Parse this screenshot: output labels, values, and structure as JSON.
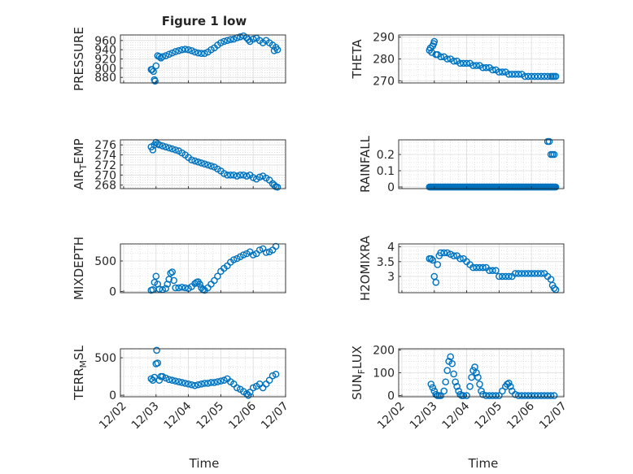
{
  "figure": {
    "title": "Figure 1 low",
    "xlabel": "Time"
  },
  "colors": {
    "marker": "#0072BD",
    "axes": "#262626",
    "grid": "#d0d0d0"
  },
  "x_ticks": [
    "12/02",
    "12/03",
    "12/04",
    "12/05",
    "12/06",
    "12/07"
  ],
  "chart_data": [
    {
      "type": "scatter",
      "ylabel": "PRESSURE",
      "xlim": [
        -0.1,
        5.0
      ],
      "ylim": [
        868,
        972
      ],
      "yticks": [
        "960",
        "940",
        "920",
        "900",
        "880"
      ],
      "ytick_values": [
        960,
        940,
        920,
        900,
        880
      ],
      "grid": true,
      "x": [
        0.85,
        0.88,
        0.92,
        0.95,
        0.97,
        1.0,
        1.05,
        1.1,
        1.15,
        1.2,
        1.3,
        1.4,
        1.5,
        1.6,
        1.7,
        1.8,
        1.9,
        2.0,
        2.1,
        2.2,
        2.3,
        2.4,
        2.5,
        2.6,
        2.7,
        2.8,
        2.9,
        3.0,
        3.1,
        3.2,
        3.3,
        3.4,
        3.5,
        3.6,
        3.7,
        3.8,
        3.85,
        3.9,
        4.0,
        4.1,
        4.2,
        4.3,
        4.4,
        4.5,
        4.6,
        4.65,
        4.7,
        4.75
      ],
      "y": [
        897,
        897,
        893,
        875,
        872,
        905,
        927,
        925,
        922,
        925,
        927,
        930,
        933,
        936,
        938,
        940,
        941,
        940,
        938,
        935,
        933,
        932,
        932,
        935,
        940,
        944,
        950,
        955,
        958,
        960,
        962,
        963,
        966,
        968,
        970,
        966,
        962,
        958,
        963,
        965,
        960,
        955,
        960,
        955,
        950,
        938,
        945,
        940
      ]
    },
    {
      "type": "scatter",
      "ylabel": "THETA",
      "xlim": [
        -0.1,
        5.0
      ],
      "ylim": [
        269,
        291
      ],
      "yticks": [
        "290",
        "280",
        "270"
      ],
      "ytick_values": [
        290,
        280,
        270
      ],
      "grid": true,
      "x": [
        0.85,
        0.88,
        0.92,
        0.95,
        0.98,
        1.0,
        1.05,
        1.1,
        1.2,
        1.3,
        1.4,
        1.5,
        1.6,
        1.7,
        1.8,
        1.9,
        2.0,
        2.1,
        2.2,
        2.3,
        2.4,
        2.5,
        2.6,
        2.7,
        2.8,
        2.9,
        3.0,
        3.1,
        3.2,
        3.3,
        3.4,
        3.5,
        3.6,
        3.7,
        3.8,
        3.9,
        4.0,
        4.1,
        4.2,
        4.3,
        4.4,
        4.5,
        4.6,
        4.65,
        4.7,
        4.75
      ],
      "y": [
        284,
        285,
        283,
        286,
        287,
        288,
        282,
        282,
        281,
        281,
        280,
        280,
        279,
        279,
        278,
        278,
        278,
        278,
        277,
        277,
        277,
        276,
        276,
        276,
        275,
        275,
        274,
        274,
        274,
        273,
        273,
        273,
        273,
        273,
        272,
        272,
        272,
        272,
        272,
        272,
        272,
        272,
        272,
        272,
        272,
        272
      ]
    },
    {
      "type": "scatter",
      "ylabel": "AIR_TEMP",
      "xlim": [
        -0.1,
        5.0
      ],
      "ylim": [
        267.3,
        277
      ],
      "yticks": [
        "276",
        "274",
        "272",
        "270",
        "268"
      ],
      "ytick_values": [
        276,
        274,
        272,
        270,
        268
      ],
      "grid": true,
      "x": [
        0.85,
        0.9,
        0.95,
        1.0,
        1.05,
        1.1,
        1.2,
        1.3,
        1.4,
        1.5,
        1.6,
        1.7,
        1.8,
        1.9,
        2.0,
        2.1,
        2.2,
        2.3,
        2.4,
        2.5,
        2.6,
        2.7,
        2.8,
        2.9,
        3.0,
        3.1,
        3.2,
        3.3,
        3.4,
        3.5,
        3.6,
        3.7,
        3.8,
        3.9,
        4.0,
        4.1,
        4.2,
        4.3,
        4.4,
        4.5,
        4.6,
        4.65,
        4.7,
        4.75
      ],
      "y": [
        275.6,
        275.0,
        276.0,
        276.5,
        276.2,
        276.0,
        275.8,
        275.6,
        275.4,
        275.2,
        275.0,
        274.8,
        274.4,
        274.0,
        273.5,
        273.0,
        272.8,
        272.6,
        272.4,
        272.2,
        272.0,
        271.8,
        271.6,
        271.2,
        270.8,
        270.3,
        270.0,
        270.0,
        270.0,
        269.8,
        270.0,
        270.0,
        269.8,
        270.0,
        269.5,
        269.2,
        269.6,
        269.8,
        269.4,
        269.0,
        268.3,
        268.0,
        267.7,
        267.6
      ]
    },
    {
      "type": "scatter",
      "ylabel": "RAINFALL",
      "xlim": [
        -0.1,
        5.0
      ],
      "ylim": [
        -0.01,
        0.29
      ],
      "yticks": [
        "0.2",
        "0.1",
        "0"
      ],
      "ytick_values": [
        0.2,
        0.1,
        0
      ],
      "grid": true,
      "x_range_zero": [
        0.85,
        4.75
      ],
      "x": [
        4.5,
        4.55,
        4.6,
        4.65,
        4.7
      ],
      "y": [
        0.28,
        0.28,
        0.2,
        0.2,
        0.2
      ]
    },
    {
      "type": "scatter",
      "ylabel": "MIXDEPTH",
      "xlim": [
        -0.1,
        5.0
      ],
      "ylim": [
        -20,
        780
      ],
      "yticks": [
        "500",
        "0"
      ],
      "ytick_values": [
        500,
        0
      ],
      "grid": true,
      "x": [
        0.85,
        0.9,
        0.95,
        1.0,
        1.05,
        1.1,
        1.2,
        1.3,
        1.35,
        1.4,
        1.45,
        1.5,
        1.55,
        1.6,
        1.7,
        1.8,
        1.9,
        2.0,
        2.1,
        2.2,
        2.25,
        2.3,
        2.35,
        2.4,
        2.45,
        2.5,
        2.6,
        2.7,
        2.8,
        2.9,
        3.0,
        3.1,
        3.2,
        3.3,
        3.4,
        3.5,
        3.6,
        3.7,
        3.8,
        3.9,
        4.0,
        4.1,
        4.2,
        4.3,
        4.4,
        4.5,
        4.6,
        4.7
      ],
      "y": [
        20,
        30,
        150,
        250,
        120,
        40,
        30,
        50,
        120,
        200,
        300,
        320,
        180,
        60,
        60,
        70,
        60,
        50,
        80,
        130,
        150,
        160,
        120,
        60,
        30,
        20,
        60,
        120,
        180,
        250,
        330,
        380,
        420,
        480,
        520,
        540,
        570,
        600,
        620,
        650,
        600,
        620,
        680,
        700,
        640,
        650,
        680,
        740
      ]
    },
    {
      "type": "scatter",
      "ylabel": "H2OMIXRA",
      "xlim": [
        -0.1,
        5.0
      ],
      "ylim": [
        2.45,
        4.1
      ],
      "yticks": [
        "4",
        "3.5",
        "3"
      ],
      "ytick_values": [
        4,
        3.5,
        3
      ],
      "grid": true,
      "x": [
        0.85,
        0.9,
        0.95,
        1.0,
        1.05,
        1.1,
        1.15,
        1.2,
        1.3,
        1.4,
        1.5,
        1.6,
        1.7,
        1.8,
        1.9,
        2.0,
        2.1,
        2.2,
        2.3,
        2.4,
        2.5,
        2.6,
        2.7,
        2.8,
        2.9,
        3.0,
        3.1,
        3.2,
        3.3,
        3.4,
        3.5,
        3.6,
        3.7,
        3.8,
        3.9,
        4.0,
        4.1,
        4.2,
        4.3,
        4.4,
        4.5,
        4.6,
        4.65,
        4.7,
        4.75
      ],
      "y": [
        3.6,
        3.6,
        3.55,
        3.0,
        2.8,
        3.4,
        3.7,
        3.8,
        3.8,
        3.8,
        3.75,
        3.7,
        3.7,
        3.6,
        3.6,
        3.5,
        3.4,
        3.3,
        3.3,
        3.3,
        3.3,
        3.3,
        3.2,
        3.2,
        3.2,
        3.0,
        3.0,
        3.0,
        3.0,
        3.0,
        3.1,
        3.1,
        3.1,
        3.1,
        3.1,
        3.1,
        3.1,
        3.1,
        3.1,
        3.1,
        3.0,
        2.9,
        2.7,
        2.6,
        2.55
      ]
    },
    {
      "type": "scatter",
      "ylabel": "TERR_MSL",
      "xlim": [
        -0.1,
        5.0
      ],
      "ylim": [
        -20,
        620
      ],
      "yticks": [
        "500",
        "0"
      ],
      "ytick_values": [
        500,
        0
      ],
      "grid": true,
      "x": [
        0.85,
        0.9,
        0.95,
        1.0,
        1.02,
        1.05,
        1.1,
        1.15,
        1.2,
        1.3,
        1.4,
        1.5,
        1.6,
        1.7,
        1.8,
        1.9,
        2.0,
        2.1,
        2.2,
        2.3,
        2.4,
        2.5,
        2.6,
        2.7,
        2.8,
        2.9,
        3.0,
        3.1,
        3.2,
        3.3,
        3.4,
        3.5,
        3.6,
        3.7,
        3.8,
        3.85,
        3.9,
        4.0,
        4.1,
        4.2,
        4.3,
        4.4,
        4.5,
        4.6,
        4.7
      ],
      "y": [
        220,
        200,
        240,
        420,
        600,
        430,
        200,
        250,
        250,
        230,
        210,
        200,
        190,
        180,
        170,
        160,
        150,
        140,
        130,
        140,
        150,
        160,
        160,
        170,
        170,
        180,
        190,
        200,
        220,
        180,
        150,
        100,
        80,
        50,
        20,
        0,
        40,
        100,
        120,
        150,
        100,
        150,
        200,
        260,
        280
      ]
    },
    {
      "type": "scatter",
      "ylabel": "SUN_FLUX",
      "xlim": [
        -0.1,
        5.0
      ],
      "ylim": [
        -5,
        205
      ],
      "yticks": [
        "200",
        "100",
        "0"
      ],
      "ytick_values": [
        200,
        100,
        0
      ],
      "grid": true,
      "x": [
        0.9,
        0.95,
        1.0,
        1.05,
        1.1,
        1.15,
        1.2,
        1.3,
        1.35,
        1.4,
        1.45,
        1.5,
        1.55,
        1.6,
        1.65,
        1.7,
        1.75,
        1.8,
        1.85,
        1.9,
        2.0,
        2.1,
        2.15,
        2.2,
        2.25,
        2.3,
        2.35,
        2.4,
        2.45,
        2.5,
        2.6,
        2.7,
        2.8,
        2.9,
        3.0,
        3.1,
        3.2,
        3.25,
        3.3,
        3.35,
        3.4,
        3.5,
        3.6,
        3.7,
        3.8,
        3.9,
        4.0,
        4.1,
        4.2,
        4.3,
        4.4,
        4.5,
        4.6,
        4.7
      ],
      "y": [
        50,
        35,
        20,
        5,
        0,
        0,
        0,
        20,
        60,
        110,
        150,
        170,
        140,
        95,
        60,
        40,
        20,
        5,
        0,
        0,
        0,
        40,
        80,
        110,
        125,
        100,
        80,
        50,
        20,
        5,
        0,
        0,
        0,
        0,
        0,
        20,
        40,
        50,
        55,
        40,
        20,
        5,
        0,
        0,
        0,
        0,
        0,
        0,
        0,
        0,
        0,
        0,
        0,
        0
      ]
    }
  ]
}
